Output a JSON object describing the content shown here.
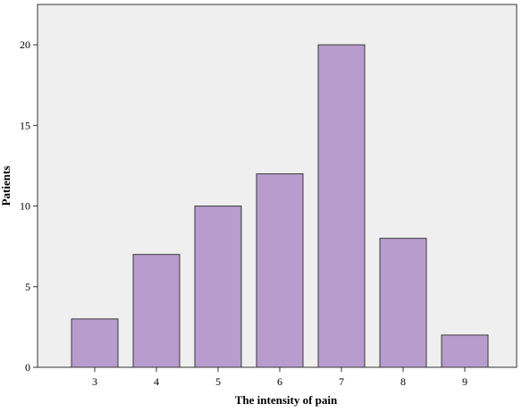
{
  "chart_data": {
    "type": "bar",
    "title": "",
    "xlabel": "The intensity of pain",
    "ylabel": "Patients",
    "categories": [
      "3",
      "4",
      "5",
      "6",
      "7",
      "8",
      "9"
    ],
    "values": [
      3,
      7,
      10,
      12,
      20,
      8,
      2
    ],
    "ylim": [
      0,
      22.5
    ],
    "yticks": [
      "0",
      "5",
      "10",
      "15",
      "20"
    ],
    "grid": false,
    "legend": "none"
  },
  "colors": {
    "plot_background": "#efefef",
    "bar_fill": "#b89cce",
    "bar_stroke": "#3a3a3a",
    "axis": "#333333"
  }
}
